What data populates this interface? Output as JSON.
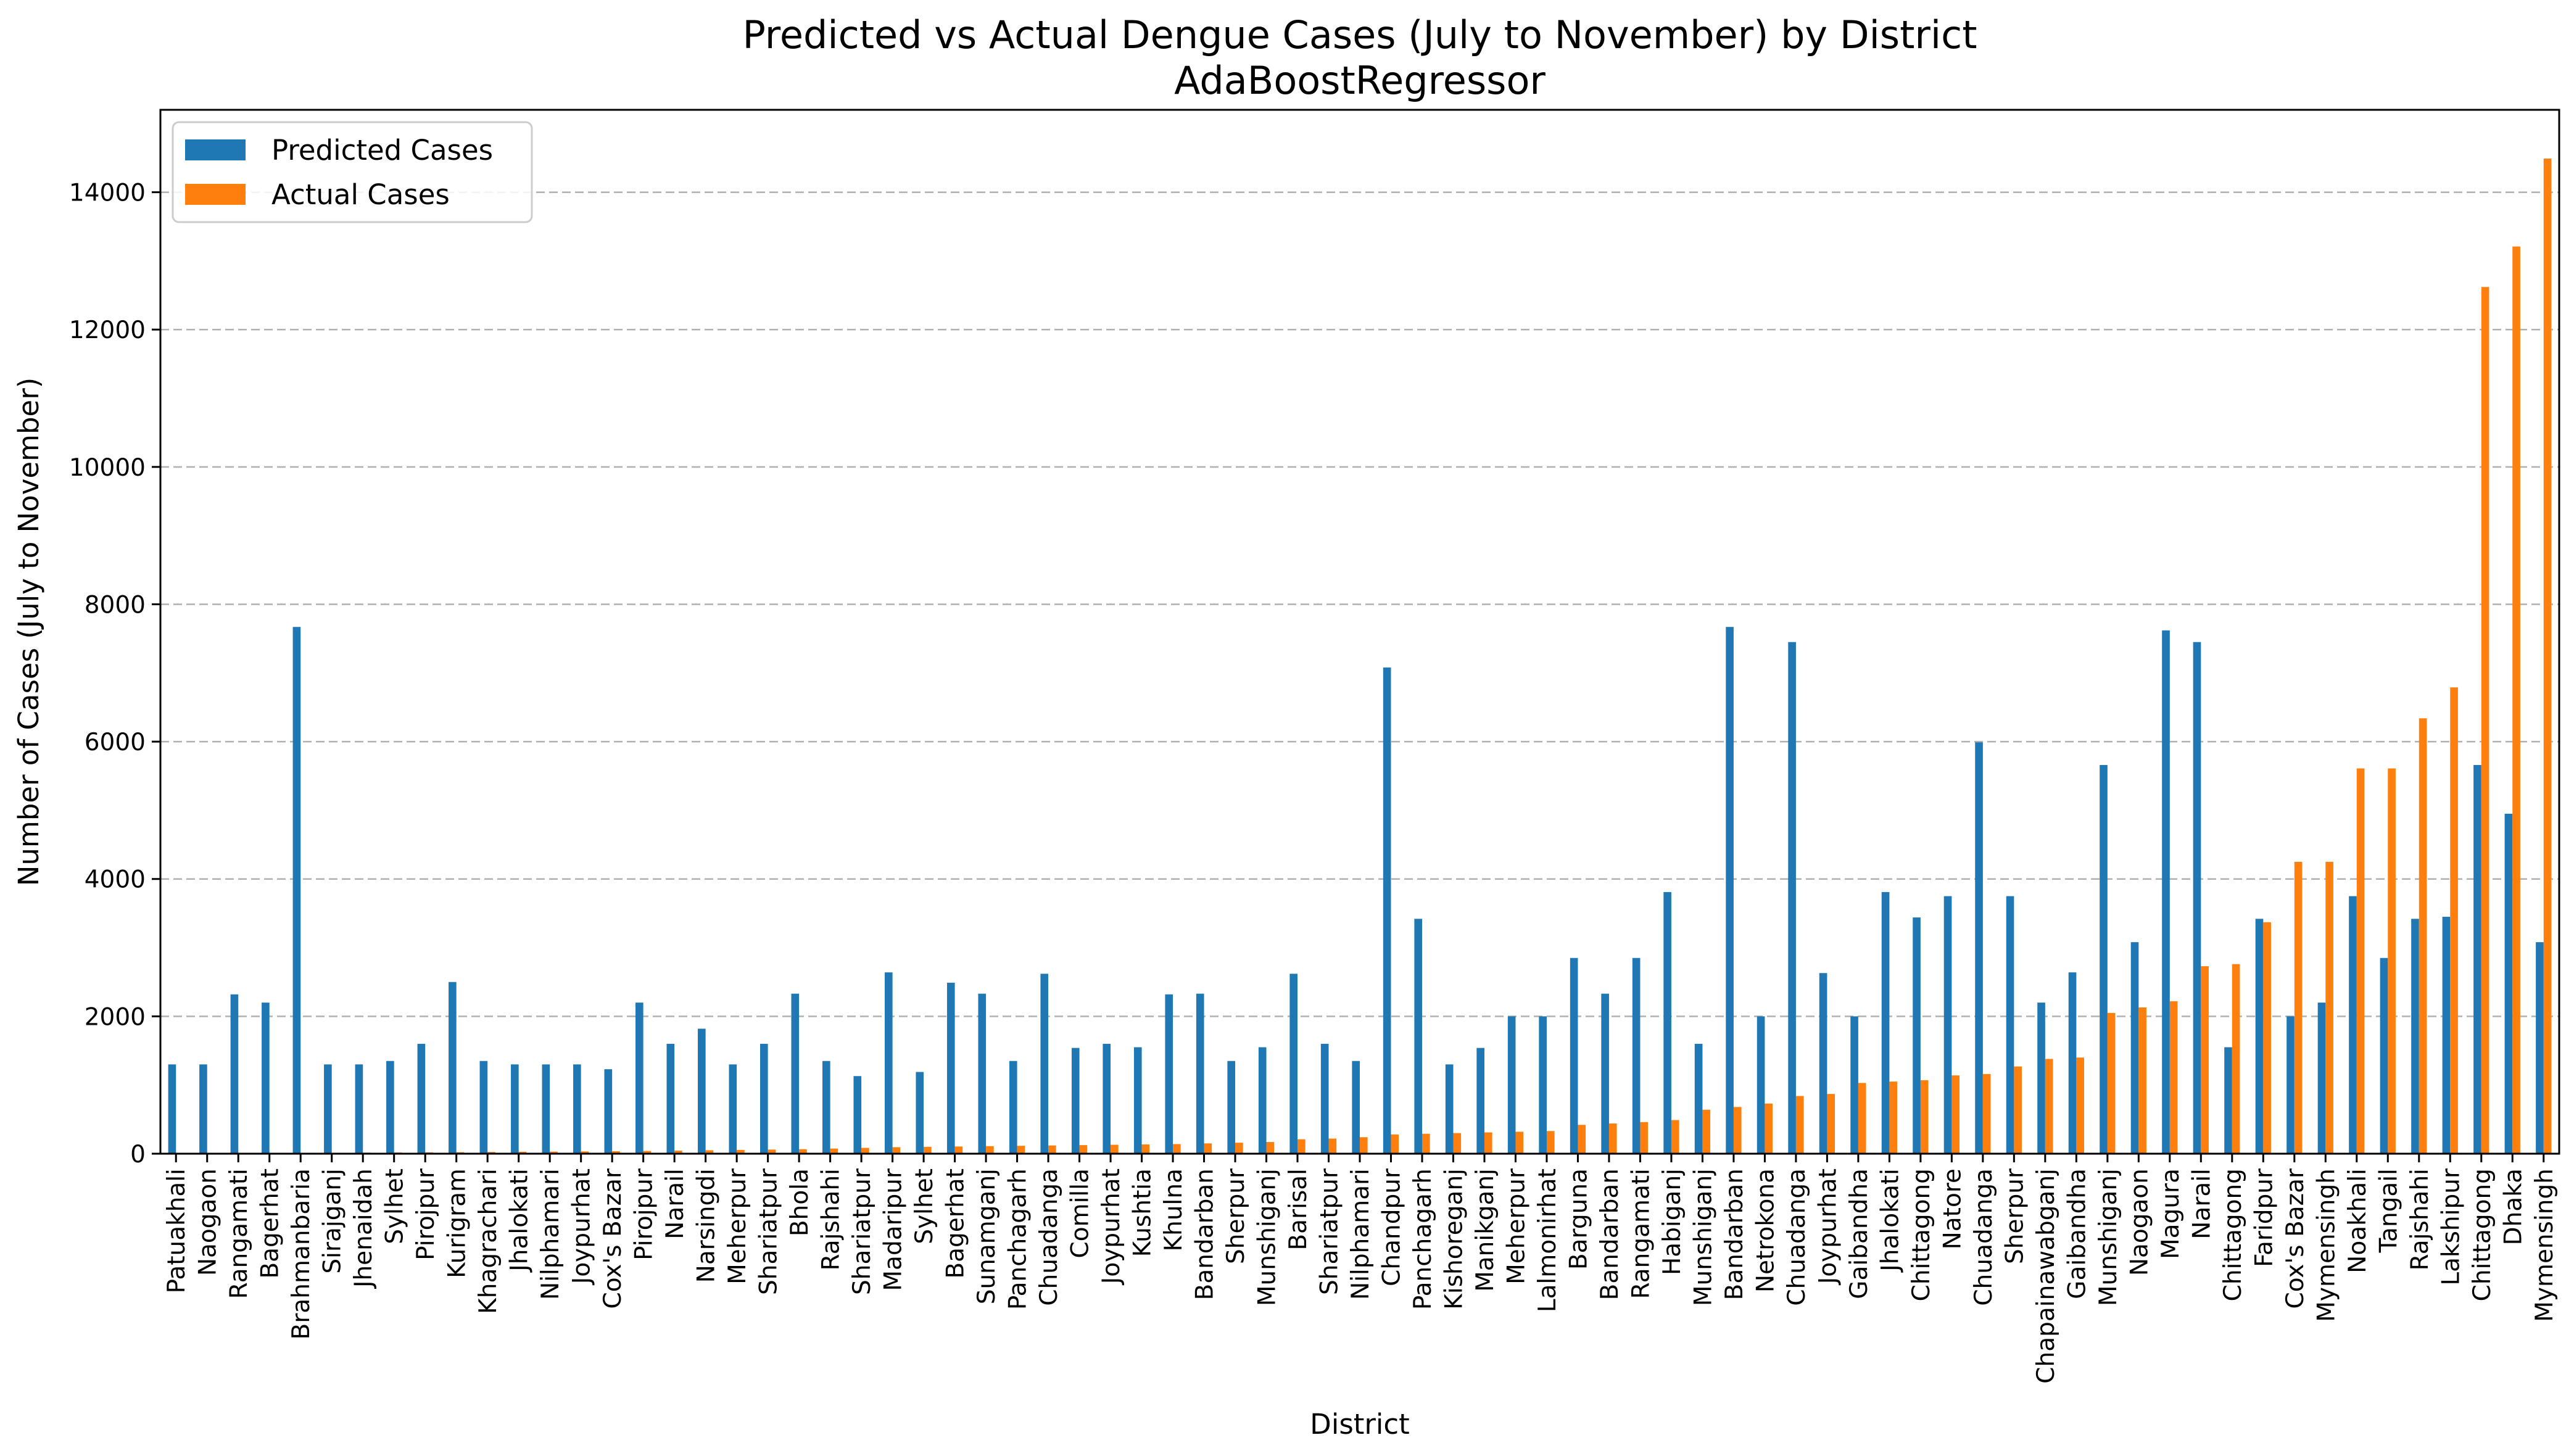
{
  "chart_data": {
    "type": "bar",
    "title": "Predicted vs Actual Dengue Cases (July to November) by District",
    "subtitle": "AdaBoostRegressor",
    "xlabel": "District",
    "ylabel": "Number of Cases (July to November)",
    "ylim": [
      0,
      15200
    ],
    "yticks": [
      0,
      2000,
      4000,
      6000,
      8000,
      10000,
      12000,
      14000
    ],
    "grid": "y-dashed",
    "legend_position": "top-left",
    "colors": {
      "predicted": "#1f77b4",
      "actual": "#ff7f0e",
      "grid": "#b0b0b0"
    },
    "categories": [
      "Patuakhali",
      "Naogaon",
      "Rangamati",
      "Bagerhat",
      "Brahmanbaria",
      "Sirajganj",
      "Jhenaidah",
      "Sylhet",
      "Pirojpur",
      "Kurigram",
      "Khagrachari",
      "Jhalokati",
      "Nilphamari",
      "Joypurhat",
      "Cox's Bazar",
      "Pirojpur",
      "Narail",
      "Narsingdi",
      "Meherpur",
      "Shariatpur",
      "Bhola",
      "Rajshahi",
      "Shariatpur",
      "Madaripur",
      "Sylhet",
      "Bagerhat",
      "Sunamganj",
      "Panchagarh",
      "Chuadanga",
      "Comilla",
      "Joypurhat",
      "Kushtia",
      "Khulna",
      "Bandarban",
      "Sherpur",
      "Munshiganj",
      "Barisal",
      "Shariatpur",
      "Nilphamari",
      "Chandpur",
      "Panchagarh",
      "Kishoreganj",
      "Manikganj",
      "Meherpur",
      "Lalmonirhat",
      "Barguna",
      "Bandarban",
      "Rangamati",
      "Habiganj",
      "Munshiganj",
      "Bandarban",
      "Netrokona",
      "Chuadanga",
      "Joypurhat",
      "Gaibandha",
      "Jhalokati",
      "Chittagong",
      "Natore",
      "Chuadanga",
      "Sherpur",
      "Chapainawabganj",
      "Gaibandha",
      "Munshiganj",
      "Naogaon",
      "Magura",
      "Narail",
      "Chittagong",
      "Faridpur",
      "Cox's Bazar",
      "Mymensingh",
      "Noakhali",
      "Tangail",
      "Rajshahi",
      "Lakshipur",
      "Chittagong",
      "Dhaka",
      "Mymensingh"
    ],
    "series": [
      {
        "name": "Predicted Cases",
        "values": [
          1300,
          1300,
          2320,
          2200,
          7670,
          1300,
          1300,
          1350,
          1600,
          2500,
          1350,
          1300,
          1300,
          1300,
          1230,
          2200,
          1600,
          1820,
          1300,
          1600,
          2330,
          1350,
          1130,
          2640,
          1190,
          2490,
          2330,
          1350,
          2620,
          1540,
          1600,
          1550,
          2320,
          2330,
          1350,
          1550,
          2620,
          1600,
          1350,
          7080,
          3420,
          1300,
          1540,
          2000,
          2000,
          2850,
          2330,
          2850,
          3810,
          1600,
          7670,
          2000,
          7450,
          2630,
          2000,
          3810,
          3440,
          3750,
          5990,
          3750,
          2200,
          2640,
          5660,
          3080,
          7620,
          7450,
          1550,
          3420,
          2000,
          2200,
          3750,
          2850,
          3420,
          3450,
          5660,
          4950,
          3080
        ]
      },
      {
        "name": "Actual Cases",
        "values": [
          3,
          5,
          8,
          10,
          12,
          14,
          16,
          18,
          20,
          22,
          25,
          28,
          30,
          33,
          36,
          40,
          45,
          50,
          55,
          60,
          65,
          75,
          85,
          95,
          100,
          105,
          110,
          115,
          120,
          125,
          130,
          135,
          140,
          150,
          160,
          170,
          210,
          220,
          240,
          280,
          290,
          300,
          310,
          320,
          330,
          420,
          440,
          460,
          490,
          640,
          680,
          730,
          840,
          870,
          1030,
          1050,
          1070,
          1140,
          1160,
          1270,
          1380,
          1400,
          2050,
          2130,
          2220,
          2730,
          2760,
          3370,
          4250,
          4250,
          5610,
          5610,
          6340,
          6790,
          12620,
          13210,
          14490
        ]
      }
    ]
  }
}
